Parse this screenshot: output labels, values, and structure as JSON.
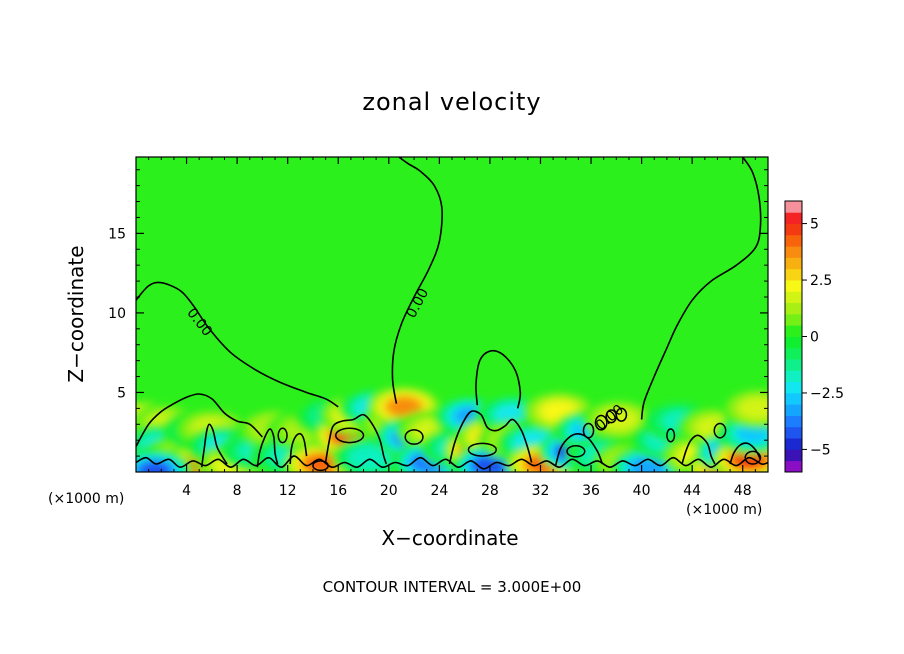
{
  "chart_data": {
    "type": "heatmap",
    "title": "zonal velocity",
    "xlabel": "X−coordinate",
    "ylabel": "Z−coordinate",
    "x_unit": "(×1000 m)",
    "footnote": "CONTOUR INTERVAL = 3.000E+00",
    "xlim": [
      0,
      50
    ],
    "ylim": [
      0,
      19.8
    ],
    "x_ticks": [
      4,
      8,
      12,
      16,
      20,
      24,
      28,
      32,
      36,
      40,
      44,
      48
    ],
    "y_ticks": [
      5,
      10,
      15
    ],
    "zero_contour_label": "0.00",
    "colorbar": {
      "min": -6,
      "max": 6,
      "tick_values": [
        5,
        2.5,
        0,
        -2.5,
        -5
      ],
      "tick_labels": [
        "5",
        "2.5",
        "0",
        "−2.5",
        "−5"
      ],
      "levels": [
        {
          "from": -6,
          "to": -5.5,
          "color": "#8a0fc4"
        },
        {
          "from": -5.5,
          "to": -5,
          "color": "#3a12b5"
        },
        {
          "from": -5,
          "to": -4.5,
          "color": "#1a2ad0"
        },
        {
          "from": -4.5,
          "to": -4,
          "color": "#1e55ee"
        },
        {
          "from": -4,
          "to": -3.5,
          "color": "#1c7eff"
        },
        {
          "from": -3.5,
          "to": -3,
          "color": "#14a6ff"
        },
        {
          "from": -3,
          "to": -2.5,
          "color": "#11c8ff"
        },
        {
          "from": -2.5,
          "to": -2,
          "color": "#12e6f0"
        },
        {
          "from": -2,
          "to": -1.5,
          "color": "#10f0c0"
        },
        {
          "from": -1.5,
          "to": -1,
          "color": "#10f08a"
        },
        {
          "from": -1,
          "to": -0.5,
          "color": "#0ff05a"
        },
        {
          "from": -0.5,
          "to": 0,
          "color": "#10ee30"
        },
        {
          "from": 0,
          "to": 0.5,
          "color": "#2cf01c"
        },
        {
          "from": 0.5,
          "to": 1,
          "color": "#74f016"
        },
        {
          "from": 1,
          "to": 1.5,
          "color": "#a8f014"
        },
        {
          "from": 1.5,
          "to": 2,
          "color": "#d2f414"
        },
        {
          "from": 2,
          "to": 2.5,
          "color": "#f8f816"
        },
        {
          "from": 2.5,
          "to": 3,
          "color": "#f8d414"
        },
        {
          "from": 3,
          "to": 3.5,
          "color": "#f8b010"
        },
        {
          "from": 3.5,
          "to": 4,
          "color": "#f88c10"
        },
        {
          "from": 4,
          "to": 4.5,
          "color": "#f8640c"
        },
        {
          "from": 4.5,
          "to": 5,
          "color": "#f43a10"
        },
        {
          "from": 5,
          "to": 5.5,
          "color": "#f42424"
        },
        {
          "from": 5.5,
          "to": 6,
          "color": "#f6909a"
        }
      ]
    },
    "background_value": 0.3,
    "anomalies": [
      {
        "x": 0.8,
        "z": 3.2,
        "value": 3.2
      },
      {
        "x": 0.5,
        "z": 2.2,
        "value": 1.6
      },
      {
        "x": 2.5,
        "z": 3.0,
        "value": 1.5
      },
      {
        "x": 2.0,
        "z": 1.7,
        "value": -2.2
      },
      {
        "x": 3.4,
        "z": 1.0,
        "value": 1.2
      },
      {
        "x": 4.0,
        "z": 0.2,
        "value": 4.2
      },
      {
        "x": 1.5,
        "z": 0.1,
        "value": -4.2
      },
      {
        "x": 5.0,
        "z": 2.6,
        "value": -2.0
      },
      {
        "x": 6.0,
        "z": 2.7,
        "value": 1.6
      },
      {
        "x": 6.9,
        "z": 1.6,
        "value": -2.2
      },
      {
        "x": 7.8,
        "z": 0.5,
        "value": 2.0
      },
      {
        "x": 9.5,
        "z": 1.3,
        "value": -1.8
      },
      {
        "x": 11.0,
        "z": 2.7,
        "value": 1.4
      },
      {
        "x": 12.0,
        "z": 1.0,
        "value": -1.6
      },
      {
        "x": 13.3,
        "z": 2.6,
        "value": 1.3
      },
      {
        "x": 14.6,
        "z": 0.5,
        "value": 4.0
      },
      {
        "x": 15.5,
        "z": 3.5,
        "value": -1.5
      },
      {
        "x": 17.0,
        "z": 2.3,
        "value": 5.2
      },
      {
        "x": 17.5,
        "z": 3.6,
        "value": 2.5
      },
      {
        "x": 19.0,
        "z": 4.0,
        "value": -2.5
      },
      {
        "x": 18.5,
        "z": 0.9,
        "value": -2.0
      },
      {
        "x": 20.5,
        "z": 3.0,
        "value": 1.5
      },
      {
        "x": 21.2,
        "z": 4.1,
        "value": 3.5
      },
      {
        "x": 21.8,
        "z": 2.2,
        "value": -4.2
      },
      {
        "x": 23.5,
        "z": 2.6,
        "value": 1.8
      },
      {
        "x": 23.2,
        "z": 0.6,
        "value": -4.0
      },
      {
        "x": 25.5,
        "z": 1.5,
        "value": -2.2
      },
      {
        "x": 26.5,
        "z": 3.5,
        "value": -3.2
      },
      {
        "x": 27.3,
        "z": 1.4,
        "value": 5.2
      },
      {
        "x": 28.3,
        "z": 2.2,
        "value": 3.0
      },
      {
        "x": 28.0,
        "z": 0.4,
        "value": -4.5
      },
      {
        "x": 29.8,
        "z": 3.6,
        "value": -2.2
      },
      {
        "x": 30.0,
        "z": 2.0,
        "value": 1.8
      },
      {
        "x": 31.5,
        "z": 1.8,
        "value": -2.5
      },
      {
        "x": 32.2,
        "z": 0.5,
        "value": 4.0
      },
      {
        "x": 33.5,
        "z": 3.8,
        "value": 2.2
      },
      {
        "x": 34.8,
        "z": 1.3,
        "value": -5.0
      },
      {
        "x": 36.0,
        "z": 2.6,
        "value": -3.0
      },
      {
        "x": 37.0,
        "z": 1.0,
        "value": -2.0
      },
      {
        "x": 38.2,
        "z": 3.3,
        "value": 1.5
      },
      {
        "x": 39.0,
        "z": 0.6,
        "value": 1.5
      },
      {
        "x": 40.5,
        "z": 0.3,
        "value": -3.5
      },
      {
        "x": 42.0,
        "z": 2.0,
        "value": -2.0
      },
      {
        "x": 43.0,
        "z": 3.2,
        "value": -1.8
      },
      {
        "x": 44.5,
        "z": 1.0,
        "value": 2.2
      },
      {
        "x": 45.8,
        "z": 2.8,
        "value": 1.6
      },
      {
        "x": 46.5,
        "z": 0.3,
        "value": 4.2
      },
      {
        "x": 47.2,
        "z": 1.2,
        "value": -4.8
      },
      {
        "x": 48.5,
        "z": 0.8,
        "value": 4.5
      },
      {
        "x": 48.8,
        "z": 2.4,
        "value": -2.8
      },
      {
        "x": 49.2,
        "z": 4.0,
        "value": 1.6
      }
    ],
    "zero_contours": [
      [
        [
          0,
          10.8
        ],
        [
          1,
          11.7
        ],
        [
          2,
          11.9
        ],
        [
          3.5,
          11.4
        ],
        [
          4.5,
          10.5
        ],
        [
          5.8,
          9.0
        ],
        [
          7.5,
          7.5
        ],
        [
          9.5,
          6.4
        ],
        [
          11.5,
          5.6
        ],
        [
          13.5,
          5.0
        ],
        [
          15.0,
          4.6
        ],
        [
          16.0,
          4.1
        ]
      ],
      [
        [
          20.8,
          19.8
        ],
        [
          21.5,
          19.4
        ],
        [
          22.5,
          18.9
        ],
        [
          23.6,
          18.0
        ],
        [
          24.2,
          16.6
        ],
        [
          24.0,
          14.5
        ],
        [
          23.2,
          12.8
        ],
        [
          22.0,
          11.0
        ],
        [
          21.0,
          9.3
        ],
        [
          20.4,
          7.6
        ],
        [
          20.3,
          5.8
        ],
        [
          20.6,
          4.3
        ]
      ],
      [
        [
          48.0,
          19.8
        ],
        [
          48.8,
          18.8
        ],
        [
          49.3,
          17.2
        ],
        [
          49.4,
          15.4
        ],
        [
          49.0,
          14.1
        ],
        [
          47.5,
          13.0
        ],
        [
          45.5,
          12.0
        ],
        [
          44.0,
          10.8
        ],
        [
          42.8,
          9.2
        ],
        [
          42.0,
          7.8
        ],
        [
          41.0,
          6.0
        ],
        [
          40.2,
          4.4
        ],
        [
          40.0,
          3.3
        ]
      ],
      [
        [
          27.0,
          4.2
        ],
        [
          26.9,
          5.5
        ],
        [
          27.2,
          7.0
        ],
        [
          28.0,
          7.6
        ],
        [
          29.0,
          7.4
        ],
        [
          30.0,
          6.4
        ],
        [
          30.4,
          5.0
        ],
        [
          30.2,
          4.0
        ]
      ],
      [
        [
          0,
          1.6
        ],
        [
          1.0,
          3.0
        ],
        [
          2.0,
          3.8
        ],
        [
          3.0,
          4.3
        ],
        [
          4.0,
          4.7
        ],
        [
          5.0,
          4.9
        ],
        [
          6.0,
          4.6
        ],
        [
          7.0,
          3.7
        ],
        [
          8.0,
          3.2
        ],
        [
          9.0,
          3.0
        ],
        [
          10.0,
          2.2
        ]
      ],
      [
        [
          0,
          0.6
        ],
        [
          0.8,
          0.9
        ],
        [
          1.6,
          0.5
        ],
        [
          2.6,
          0.8
        ],
        [
          3.5,
          0.3
        ],
        [
          4.5,
          0.7
        ],
        [
          5.5,
          0.4
        ],
        [
          6.5,
          0.8
        ],
        [
          7.5,
          0.3
        ],
        [
          8.5,
          0.8
        ],
        [
          9.5,
          0.4
        ],
        [
          10.5,
          0.9
        ],
        [
          11.5,
          0.3
        ],
        [
          12.5,
          1.0
        ],
        [
          13.5,
          0.4
        ],
        [
          14.5,
          0.8
        ],
        [
          15.5,
          0.3
        ],
        [
          16.5,
          0.6
        ],
        [
          17.5,
          0.3
        ],
        [
          18.5,
          0.8
        ],
        [
          19.5,
          0.3
        ],
        [
          20.5,
          0.6
        ],
        [
          21.5,
          0.4
        ],
        [
          22.5,
          0.9
        ],
        [
          23.5,
          0.4
        ],
        [
          24.5,
          0.8
        ],
        [
          25.5,
          0.3
        ],
        [
          26.5,
          0.7
        ],
        [
          27.5,
          0.2
        ],
        [
          28.5,
          0.6
        ],
        [
          29.5,
          0.4
        ],
        [
          30.5,
          0.8
        ],
        [
          31.5,
          0.4
        ],
        [
          32.5,
          0.7
        ],
        [
          33.5,
          0.3
        ],
        [
          34.5,
          0.8
        ],
        [
          35.5,
          0.4
        ],
        [
          36.5,
          0.7
        ],
        [
          37.5,
          0.3
        ],
        [
          38.5,
          0.7
        ],
        [
          39.5,
          0.4
        ],
        [
          40.5,
          0.8
        ],
        [
          41.5,
          0.4
        ],
        [
          42.5,
          0.9
        ],
        [
          43.5,
          0.4
        ],
        [
          44.5,
          0.8
        ],
        [
          45.5,
          0.3
        ],
        [
          46.5,
          0.8
        ],
        [
          47.5,
          0.4
        ],
        [
          48.5,
          0.9
        ],
        [
          49.5,
          0.5
        ],
        [
          50,
          0.6
        ]
      ],
      [
        [
          5.2,
          0.3
        ],
        [
          5.4,
          1.5
        ],
        [
          5.6,
          2.6
        ],
        [
          5.8,
          3.0
        ],
        [
          6.1,
          2.6
        ],
        [
          6.4,
          1.6
        ],
        [
          6.8,
          1.0
        ],
        [
          7.2,
          0.5
        ]
      ],
      [
        [
          9.6,
          0.3
        ],
        [
          9.8,
          1.3
        ],
        [
          10.2,
          2.2
        ],
        [
          10.6,
          2.7
        ],
        [
          10.9,
          2.2
        ],
        [
          11.0,
          1.2
        ],
        [
          11.2,
          0.5
        ]
      ],
      [
        [
          12.2,
          0.5
        ],
        [
          12.3,
          1.5
        ],
        [
          12.6,
          2.2
        ],
        [
          13.0,
          2.4
        ],
        [
          13.3,
          2.0
        ],
        [
          13.5,
          1.0
        ]
      ],
      [
        [
          15.0,
          0.6
        ],
        [
          15.3,
          2.0
        ],
        [
          15.6,
          2.9
        ],
        [
          16.3,
          3.2
        ],
        [
          17.2,
          3.3
        ],
        [
          18.0,
          3.6
        ],
        [
          18.7,
          3.0
        ],
        [
          19.3,
          2.0
        ],
        [
          19.6,
          1.0
        ],
        [
          19.8,
          0.5
        ]
      ],
      [
        [
          24.8,
          0.5
        ],
        [
          25.2,
          1.8
        ],
        [
          25.8,
          3.0
        ],
        [
          26.5,
          3.8
        ],
        [
          27.3,
          3.6
        ],
        [
          27.8,
          2.8
        ],
        [
          28.5,
          2.6
        ],
        [
          29.2,
          2.9
        ],
        [
          29.8,
          3.3
        ],
        [
          30.5,
          2.6
        ],
        [
          31.0,
          1.5
        ],
        [
          31.3,
          0.6
        ]
      ],
      [
        [
          33.2,
          0.4
        ],
        [
          33.6,
          1.5
        ],
        [
          34.3,
          2.2
        ],
        [
          35.0,
          2.4
        ],
        [
          35.8,
          2.1
        ],
        [
          36.5,
          1.3
        ],
        [
          36.9,
          0.5
        ]
      ],
      [
        [
          43.2,
          0.5
        ],
        [
          43.5,
          1.3
        ],
        [
          43.9,
          2.0
        ],
        [
          44.5,
          2.3
        ],
        [
          45.2,
          1.8
        ],
        [
          45.5,
          1.0
        ],
        [
          45.8,
          0.5
        ]
      ],
      [
        [
          47.0,
          0.5
        ],
        [
          47.3,
          1.2
        ],
        [
          47.8,
          1.7
        ],
        [
          48.4,
          1.8
        ],
        [
          49.0,
          1.4
        ],
        [
          49.4,
          0.8
        ]
      ]
    ],
    "zero_closed_contours": [
      {
        "x": 11.6,
        "z": 2.3,
        "rx": 0.35,
        "rz": 0.45
      },
      {
        "x": 16.9,
        "z": 2.3,
        "rx": 1.1,
        "rz": 0.45
      },
      {
        "x": 22.0,
        "z": 2.2,
        "rx": 0.7,
        "rz": 0.45
      },
      {
        "x": 27.4,
        "z": 1.4,
        "rx": 1.1,
        "rz": 0.4
      },
      {
        "x": 35.8,
        "z": 2.6,
        "rx": 0.4,
        "rz": 0.45
      },
      {
        "x": 36.8,
        "z": 3.1,
        "rx": 0.45,
        "rz": 0.45
      },
      {
        "x": 37.6,
        "z": 3.5,
        "rx": 0.4,
        "rz": 0.4
      },
      {
        "x": 38.4,
        "z": 3.6,
        "rx": 0.4,
        "rz": 0.4
      },
      {
        "x": 42.3,
        "z": 2.3,
        "rx": 0.3,
        "rz": 0.4
      },
      {
        "x": 46.2,
        "z": 2.6,
        "rx": 0.45,
        "rz": 0.45
      },
      {
        "x": 48.8,
        "z": 0.9,
        "rx": 0.6,
        "rz": 0.4
      },
      {
        "x": 34.8,
        "z": 1.3,
        "rx": 0.7,
        "rz": 0.35
      },
      {
        "x": 14.6,
        "z": 0.4,
        "rx": 0.6,
        "rz": 0.3
      }
    ],
    "zero_label_positions": [
      {
        "x": 5.0,
        "z": 9.4,
        "angle": 52
      },
      {
        "x": 22.3,
        "z": 10.6,
        "angle": -62
      },
      {
        "x": 37.5,
        "z": 3.4,
        "angle": -40
      }
    ]
  }
}
